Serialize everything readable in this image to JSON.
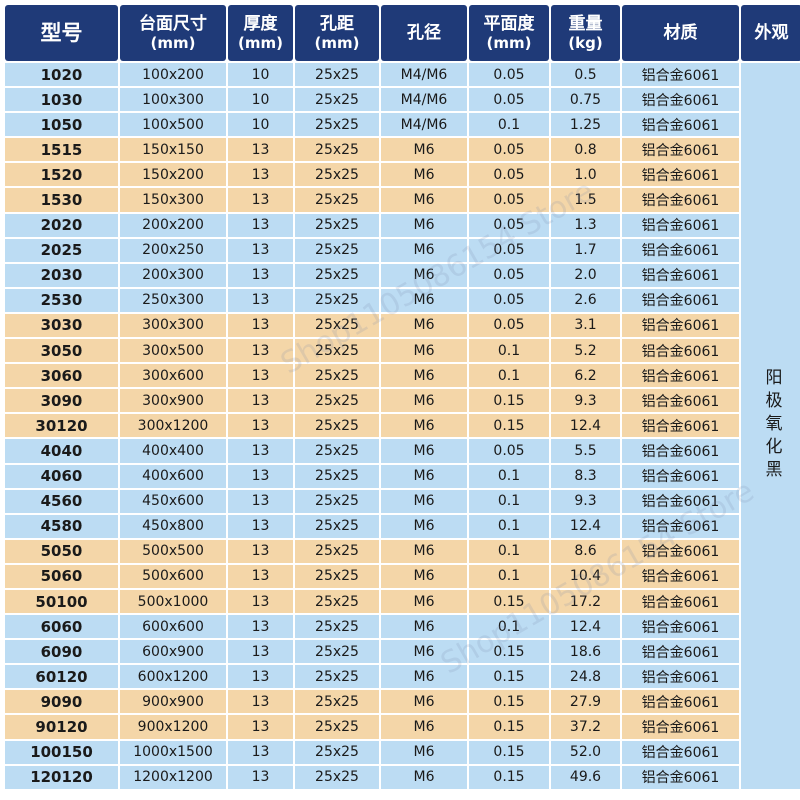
{
  "headers": [
    {
      "l1": "型号",
      "l2": ""
    },
    {
      "l1": "台面尺寸",
      "l2": "(mm)"
    },
    {
      "l1": "厚度",
      "l2": "(mm)"
    },
    {
      "l1": "孔距",
      "l2": "(mm)"
    },
    {
      "l1": "孔径",
      "l2": ""
    },
    {
      "l1": "平面度",
      "l2": "(mm)"
    },
    {
      "l1": "重量",
      "l2": "(kg)"
    },
    {
      "l1": "材质",
      "l2": ""
    },
    {
      "l1": "外观",
      "l2": ""
    }
  ],
  "finish": "阳极氧化黑",
  "watermark": "Shop1105086154 Store",
  "rows": [
    {
      "model": "1020",
      "size": "100x200",
      "thick": "10",
      "pitch": "25x25",
      "hole": "M4/M6",
      "flat": "0.05",
      "weight": "0.5",
      "material": "铝合金6061",
      "tone": "blue"
    },
    {
      "model": "1030",
      "size": "100x300",
      "thick": "10",
      "pitch": "25x25",
      "hole": "M4/M6",
      "flat": "0.05",
      "weight": "0.75",
      "material": "铝合金6061",
      "tone": "blue"
    },
    {
      "model": "1050",
      "size": "100x500",
      "thick": "10",
      "pitch": "25x25",
      "hole": "M4/M6",
      "flat": "0.1",
      "weight": "1.25",
      "material": "铝合金6061",
      "tone": "blue"
    },
    {
      "model": "1515",
      "size": "150x150",
      "thick": "13",
      "pitch": "25x25",
      "hole": "M6",
      "flat": "0.05",
      "weight": "0.8",
      "material": "铝合金6061",
      "tone": "tan"
    },
    {
      "model": "1520",
      "size": "150x200",
      "thick": "13",
      "pitch": "25x25",
      "hole": "M6",
      "flat": "0.05",
      "weight": "1.0",
      "material": "铝合金6061",
      "tone": "tan"
    },
    {
      "model": "1530",
      "size": "150x300",
      "thick": "13",
      "pitch": "25x25",
      "hole": "M6",
      "flat": "0.05",
      "weight": "1.5",
      "material": "铝合金6061",
      "tone": "tan"
    },
    {
      "model": "2020",
      "size": "200x200",
      "thick": "13",
      "pitch": "25x25",
      "hole": "M6",
      "flat": "0.05",
      "weight": "1.3",
      "material": "铝合金6061",
      "tone": "blue"
    },
    {
      "model": "2025",
      "size": "200x250",
      "thick": "13",
      "pitch": "25x25",
      "hole": "M6",
      "flat": "0.05",
      "weight": "1.7",
      "material": "铝合金6061",
      "tone": "blue"
    },
    {
      "model": "2030",
      "size": "200x300",
      "thick": "13",
      "pitch": "25x25",
      "hole": "M6",
      "flat": "0.05",
      "weight": "2.0",
      "material": "铝合金6061",
      "tone": "blue"
    },
    {
      "model": "2530",
      "size": "250x300",
      "thick": "13",
      "pitch": "25x25",
      "hole": "M6",
      "flat": "0.05",
      "weight": "2.6",
      "material": "铝合金6061",
      "tone": "blue"
    },
    {
      "model": "3030",
      "size": "300x300",
      "thick": "13",
      "pitch": "25x25",
      "hole": "M6",
      "flat": "0.05",
      "weight": "3.1",
      "material": "铝合金6061",
      "tone": "tan"
    },
    {
      "model": "3050",
      "size": "300x500",
      "thick": "13",
      "pitch": "25x25",
      "hole": "M6",
      "flat": "0.1",
      "weight": "5.2",
      "material": "铝合金6061",
      "tone": "tan"
    },
    {
      "model": "3060",
      "size": "300x600",
      "thick": "13",
      "pitch": "25x25",
      "hole": "M6",
      "flat": "0.1",
      "weight": "6.2",
      "material": "铝合金6061",
      "tone": "tan"
    },
    {
      "model": "3090",
      "size": "300x900",
      "thick": "13",
      "pitch": "25x25",
      "hole": "M6",
      "flat": "0.15",
      "weight": "9.3",
      "material": "铝合金6061",
      "tone": "tan"
    },
    {
      "model": "30120",
      "size": "300x1200",
      "thick": "13",
      "pitch": "25x25",
      "hole": "M6",
      "flat": "0.15",
      "weight": "12.4",
      "material": "铝合金6061",
      "tone": "tan"
    },
    {
      "model": "4040",
      "size": "400x400",
      "thick": "13",
      "pitch": "25x25",
      "hole": "M6",
      "flat": "0.05",
      "weight": "5.5",
      "material": "铝合金6061",
      "tone": "blue"
    },
    {
      "model": "4060",
      "size": "400x600",
      "thick": "13",
      "pitch": "25x25",
      "hole": "M6",
      "flat": "0.1",
      "weight": "8.3",
      "material": "铝合金6061",
      "tone": "blue"
    },
    {
      "model": "4560",
      "size": "450x600",
      "thick": "13",
      "pitch": "25x25",
      "hole": "M6",
      "flat": "0.1",
      "weight": "9.3",
      "material": "铝合金6061",
      "tone": "blue"
    },
    {
      "model": "4580",
      "size": "450x800",
      "thick": "13",
      "pitch": "25x25",
      "hole": "M6",
      "flat": "0.1",
      "weight": "12.4",
      "material": "铝合金6061",
      "tone": "blue"
    },
    {
      "model": "5050",
      "size": "500x500",
      "thick": "13",
      "pitch": "25x25",
      "hole": "M6",
      "flat": "0.1",
      "weight": "8.6",
      "material": "铝合金6061",
      "tone": "tan"
    },
    {
      "model": "5060",
      "size": "500x600",
      "thick": "13",
      "pitch": "25x25",
      "hole": "M6",
      "flat": "0.1",
      "weight": "10.4",
      "material": "铝合金6061",
      "tone": "tan"
    },
    {
      "model": "50100",
      "size": "500x1000",
      "thick": "13",
      "pitch": "25x25",
      "hole": "M6",
      "flat": "0.15",
      "weight": "17.2",
      "material": "铝合金6061",
      "tone": "tan"
    },
    {
      "model": "6060",
      "size": "600x600",
      "thick": "13",
      "pitch": "25x25",
      "hole": "M6",
      "flat": "0.1",
      "weight": "12.4",
      "material": "铝合金6061",
      "tone": "blue"
    },
    {
      "model": "6090",
      "size": "600x900",
      "thick": "13",
      "pitch": "25x25",
      "hole": "M6",
      "flat": "0.15",
      "weight": "18.6",
      "material": "铝合金6061",
      "tone": "blue"
    },
    {
      "model": "60120",
      "size": "600x1200",
      "thick": "13",
      "pitch": "25x25",
      "hole": "M6",
      "flat": "0.15",
      "weight": "24.8",
      "material": "铝合金6061",
      "tone": "blue"
    },
    {
      "model": "9090",
      "size": "900x900",
      "thick": "13",
      "pitch": "25x25",
      "hole": "M6",
      "flat": "0.15",
      "weight": "27.9",
      "material": "铝合金6061",
      "tone": "tan"
    },
    {
      "model": "90120",
      "size": "900x1200",
      "thick": "13",
      "pitch": "25x25",
      "hole": "M6",
      "flat": "0.15",
      "weight": "37.2",
      "material": "铝合金6061",
      "tone": "tan"
    },
    {
      "model": "100150",
      "size": "1000x1500",
      "thick": "13",
      "pitch": "25x25",
      "hole": "M6",
      "flat": "0.15",
      "weight": "52.0",
      "material": "铝合金6061",
      "tone": "blue"
    },
    {
      "model": "120120",
      "size": "1200x1200",
      "thick": "13",
      "pitch": "25x25",
      "hole": "M6",
      "flat": "0.15",
      "weight": "49.6",
      "material": "铝合金6061",
      "tone": "blue"
    }
  ]
}
